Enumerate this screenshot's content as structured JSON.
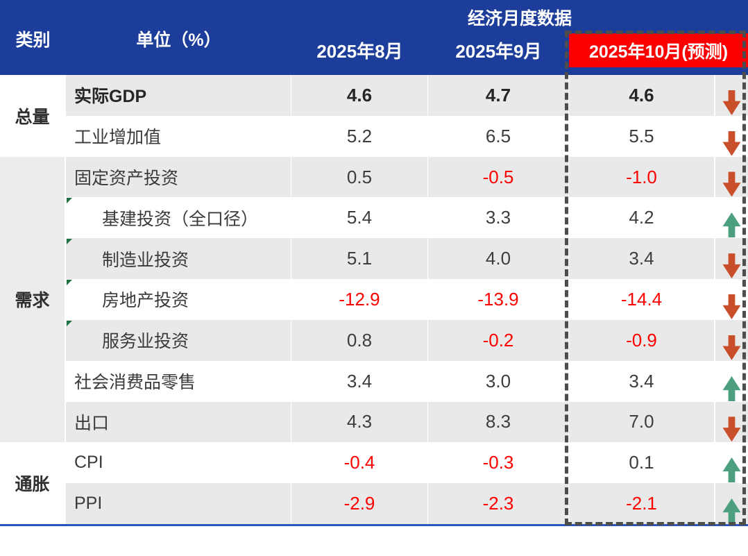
{
  "header": {
    "category_col_label": "类别",
    "unit_col_label": "单位（%）"
  },
  "colors": {
    "header_blue": "#1c3d99",
    "forecast_header_red": "#fb0000",
    "row_alt_gray": "#e9e9e9",
    "category_gray": "#ececec",
    "negative_value_red": "#ff0000",
    "arrow_down_orange_red": "#c94e2a",
    "arrow_up_green": "#4c9f7f",
    "note_marker_green": "#1e7145",
    "dashed_border_gray": "#4d4d4d",
    "bottom_rule_blue": "#2b55c0"
  },
  "chart_data": {
    "type": "table",
    "title": "经济月度数据",
    "unit": "%",
    "columns": [
      "2025年8月",
      "2025年9月",
      "2025年10月(预测)"
    ],
    "groups": [
      {
        "category": "总量",
        "row_count": 2
      },
      {
        "category": "需求",
        "row_count": 7
      },
      {
        "category": "通胀",
        "row_count": 2
      }
    ],
    "rows": [
      {
        "category": "总量",
        "indicator": "实际GDP",
        "aug": "4.6",
        "sep": "4.7",
        "oct": "4.6",
        "trend": "down"
      },
      {
        "category": "总量",
        "indicator": "工业增加值",
        "aug": "5.2",
        "sep": "6.5",
        "oct": "5.5",
        "trend": "down"
      },
      {
        "category": "需求",
        "indicator": "固定资产投资",
        "aug": "0.5",
        "sep": "-0.5",
        "oct": "-1.0",
        "trend": "down"
      },
      {
        "category": "需求",
        "indicator": "基建投资（全口径）",
        "aug": "5.4",
        "sep": "3.3",
        "oct": "4.2",
        "trend": "up"
      },
      {
        "category": "需求",
        "indicator": "制造业投资",
        "aug": "5.1",
        "sep": "4.0",
        "oct": "3.4",
        "trend": "down"
      },
      {
        "category": "需求",
        "indicator": "房地产投资",
        "aug": "-12.9",
        "sep": "-13.9",
        "oct": "-14.4",
        "trend": "down"
      },
      {
        "category": "需求",
        "indicator": "服务业投资",
        "aug": "0.8",
        "sep": "-0.2",
        "oct": "-0.9",
        "trend": "down"
      },
      {
        "category": "需求",
        "indicator": "社会消费品零售",
        "aug": "3.4",
        "sep": "3.0",
        "oct": "3.4",
        "trend": "up"
      },
      {
        "category": "需求",
        "indicator": "出口",
        "aug": "4.3",
        "sep": "8.3",
        "oct": "7.0",
        "trend": "down"
      },
      {
        "category": "通胀",
        "indicator": "CPI",
        "aug": "-0.4",
        "sep": "-0.3",
        "oct": "0.1",
        "trend": "up"
      },
      {
        "category": "通胀",
        "indicator": "PPI",
        "aug": "-2.9",
        "sep": "-2.3",
        "oct": "-2.1",
        "trend": "up"
      }
    ]
  }
}
